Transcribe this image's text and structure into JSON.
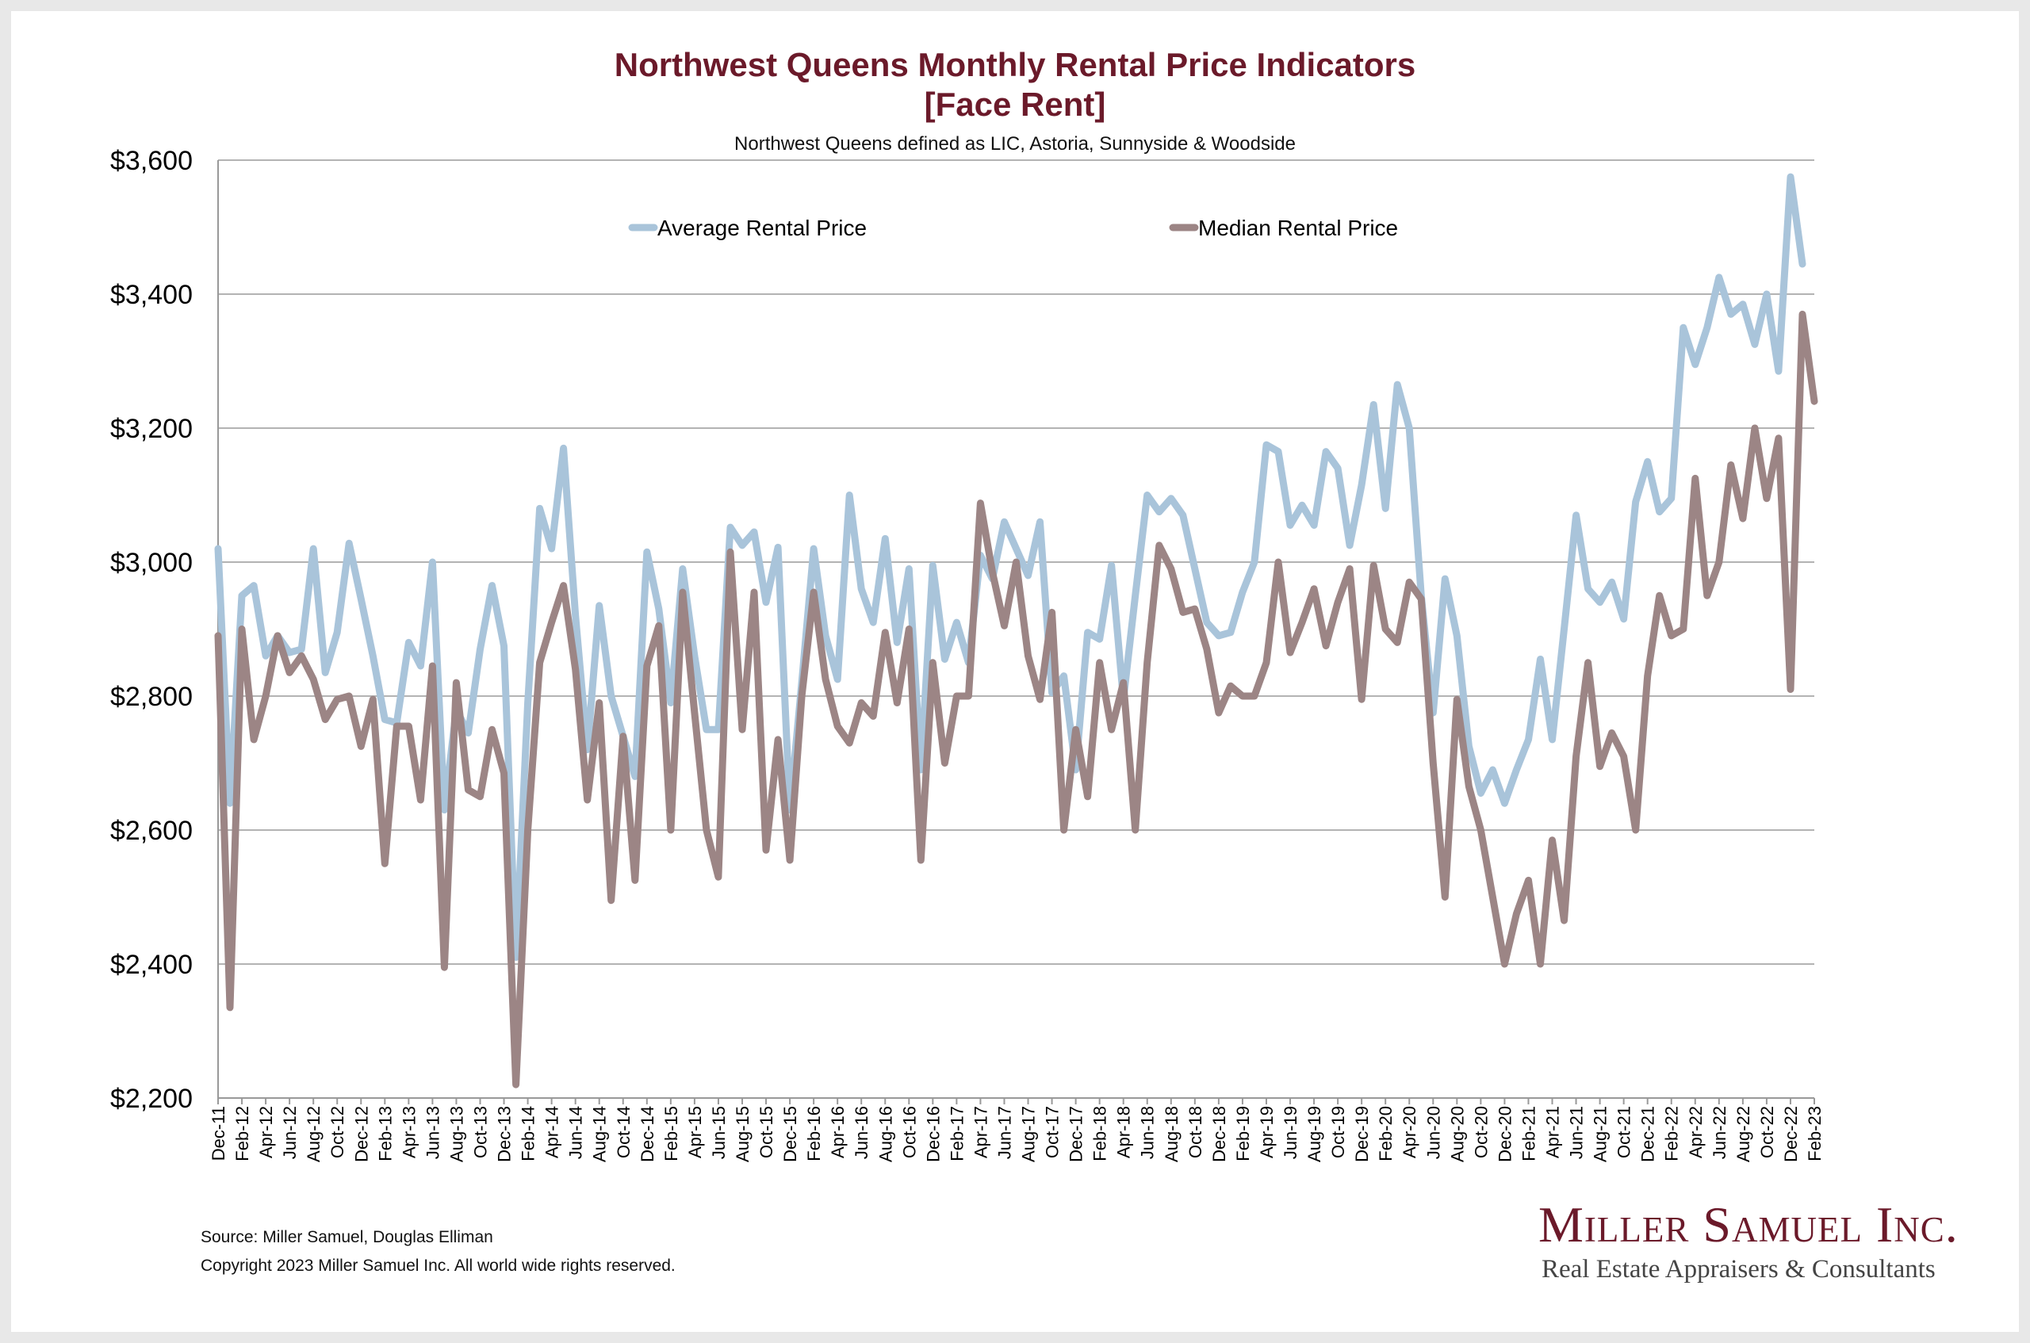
{
  "header": {
    "title_line1": "Northwest Queens Monthly Rental Price Indicators",
    "title_line2": "[Face Rent]",
    "subtitle": "Northwest Queens defined as LIC, Astoria, Sunnyside & Woodside"
  },
  "footer": {
    "source": "Source: Miller Samuel, Douglas Elliman",
    "copyright": "Copyright 2023 Miller Samuel Inc.  All world wide rights reserved."
  },
  "logo": {
    "name": "Miller Samuel Inc.",
    "tagline": "Real Estate Appraisers & Consultants"
  },
  "colors": {
    "title": "#6b1a2a",
    "average_series": "#a9c4da",
    "median_series": "#9c8585",
    "gridline": "#b3b3b3"
  },
  "chart_data": {
    "type": "line",
    "y_tick_labels": [
      "$2,200",
      "$2,400",
      "$2,600",
      "$2,800",
      "$3,000",
      "$3,200",
      "$3,400",
      "$3,600"
    ],
    "ylim": [
      2200,
      3600
    ],
    "x_tick_labels": [
      "Dec-11",
      "Feb-12",
      "Apr-12",
      "Jun-12",
      "Aug-12",
      "Oct-12",
      "Dec-12",
      "Feb-13",
      "Apr-13",
      "Jun-13",
      "Aug-13",
      "Oct-13",
      "Dec-13",
      "Feb-14",
      "Apr-14",
      "Jun-14",
      "Aug-14",
      "Oct-14",
      "Dec-14",
      "Feb-15",
      "Apr-15",
      "Jun-15",
      "Aug-15",
      "Oct-15",
      "Dec-15",
      "Feb-16",
      "Apr-16",
      "Jun-16",
      "Aug-16",
      "Oct-16",
      "Dec-16",
      "Feb-17",
      "Apr-17",
      "Jun-17",
      "Aug-17",
      "Oct-17",
      "Dec-17",
      "Feb-18",
      "Apr-18",
      "Jun-18",
      "Aug-18",
      "Oct-18",
      "Dec-18",
      "Feb-19",
      "Apr-19",
      "Jun-19",
      "Aug-19",
      "Oct-19",
      "Dec-19",
      "Feb-20",
      "Apr-20",
      "Jun-20",
      "Aug-20",
      "Oct-20",
      "Dec-20",
      "Feb-21",
      "Apr-21",
      "Jun-21",
      "Aug-21",
      "Oct-21",
      "Dec-21",
      "Feb-22",
      "Apr-22",
      "Jun-22",
      "Aug-22",
      "Oct-22",
      "Dec-22",
      "Feb-23"
    ],
    "months": [
      "Dec-11",
      "Jan-12",
      "Feb-12",
      "Mar-12",
      "Apr-12",
      "May-12",
      "Jun-12",
      "Jul-12",
      "Aug-12",
      "Sep-12",
      "Oct-12",
      "Nov-12",
      "Dec-12",
      "Jan-13",
      "Feb-13",
      "Mar-13",
      "Apr-13",
      "May-13",
      "Jun-13",
      "Jul-13",
      "Aug-13",
      "Sep-13",
      "Oct-13",
      "Nov-13",
      "Dec-13",
      "Jan-14",
      "Feb-14",
      "Mar-14",
      "Apr-14",
      "May-14",
      "Jun-14",
      "Jul-14",
      "Aug-14",
      "Sep-14",
      "Oct-14",
      "Nov-14",
      "Dec-14",
      "Jan-15",
      "Feb-15",
      "Mar-15",
      "Apr-15",
      "May-15",
      "Jun-15",
      "Jul-15",
      "Aug-15",
      "Sep-15",
      "Oct-15",
      "Nov-15",
      "Dec-15",
      "Jan-16",
      "Feb-16",
      "Mar-16",
      "Apr-16",
      "May-16",
      "Jun-16",
      "Jul-16",
      "Aug-16",
      "Sep-16",
      "Oct-16",
      "Nov-16",
      "Dec-16",
      "Jan-17",
      "Feb-17",
      "Mar-17",
      "Apr-17",
      "May-17",
      "Jun-17",
      "Jul-17",
      "Aug-17",
      "Sep-17",
      "Oct-17",
      "Nov-17",
      "Dec-17",
      "Jan-18",
      "Feb-18",
      "Mar-18",
      "Apr-18",
      "May-18",
      "Jun-18",
      "Jul-18",
      "Aug-18",
      "Sep-18",
      "Oct-18",
      "Nov-18",
      "Dec-18",
      "Jan-19",
      "Feb-19",
      "Mar-19",
      "Apr-19",
      "May-19",
      "Jun-19",
      "Jul-19",
      "Aug-19",
      "Sep-19",
      "Oct-19",
      "Nov-19",
      "Dec-19",
      "Jan-20",
      "Feb-20",
      "Mar-20",
      "Apr-20",
      "May-20",
      "Jun-20",
      "Jul-20",
      "Aug-20",
      "Sep-20",
      "Oct-20",
      "Nov-20",
      "Dec-20",
      "Jan-21",
      "Feb-21",
      "Mar-21",
      "Apr-21",
      "May-21",
      "Jun-21",
      "Jul-21",
      "Aug-21",
      "Sep-21",
      "Oct-21",
      "Nov-21",
      "Dec-21",
      "Jan-22",
      "Feb-22",
      "Mar-22",
      "Apr-22",
      "May-22",
      "Jun-22",
      "Jul-22",
      "Aug-22",
      "Sep-22",
      "Oct-22",
      "Nov-22",
      "Dec-22",
      "Jan-23",
      "Feb-23"
    ],
    "series": [
      {
        "name": "Average Rental Price",
        "color": "#a9c4da",
        "values": [
          3020,
          2640,
          2950,
          2965,
          2860,
          2890,
          2865,
          2870,
          3020,
          2835,
          2895,
          3028,
          2945,
          2860,
          2765,
          2760,
          2880,
          2845,
          3000,
          2630,
          2780,
          2745,
          2870,
          2965,
          2875,
          2410,
          2790,
          3080,
          3020,
          3170,
          2920,
          2720,
          2935,
          2800,
          2740,
          2680,
          3015,
          2930,
          2790,
          2990,
          2860,
          2750,
          2750,
          3052,
          3025,
          3045,
          2940,
          3022,
          2630,
          2820,
          3020,
          2890,
          2825,
          3100,
          2960,
          2910,
          3035,
          2880,
          2990,
          2690,
          2995,
          2855,
          2910,
          2850,
          3010,
          2975,
          3060,
          3020,
          2980,
          3060,
          2805,
          2830,
          2690,
          2895,
          2885,
          2995,
          2795,
          2950,
          3100,
          3075,
          3095,
          3070,
          2990,
          2910,
          2890,
          2895,
          2955,
          3000,
          3175,
          3165,
          3055,
          3085,
          3055,
          3165,
          3140,
          3025,
          3115,
          3235,
          3080,
          3265,
          3200,
          2950,
          2775,
          2975,
          2890,
          2725,
          2655,
          2690,
          2640,
          2690,
          2735,
          2855,
          2735,
          2900,
          3070,
          2960,
          2940,
          2970,
          2915,
          3090,
          3150,
          3075,
          3095,
          3350,
          3295,
          3350,
          3425,
          3370,
          3385,
          3325,
          3400,
          3285,
          3575,
          3445
        ]
      },
      {
        "name": "Median Rental Price",
        "color": "#9c8585",
        "values": [
          2890,
          2335,
          2900,
          2735,
          2800,
          2890,
          2835,
          2860,
          2825,
          2765,
          2795,
          2800,
          2725,
          2795,
          2550,
          2755,
          2755,
          2645,
          2845,
          2395,
          2820,
          2660,
          2650,
          2750,
          2685,
          2220,
          2600,
          2850,
          2910,
          2965,
          2840,
          2645,
          2790,
          2495,
          2740,
          2525,
          2845,
          2905,
          2600,
          2955,
          2775,
          2600,
          2530,
          3015,
          2750,
          2955,
          2570,
          2735,
          2555,
          2800,
          2955,
          2825,
          2755,
          2730,
          2790,
          2770,
          2895,
          2790,
          2900,
          2555,
          2850,
          2700,
          2800,
          2800,
          3088,
          2985,
          2905,
          3000,
          2860,
          2795,
          2925,
          2600,
          2750,
          2650,
          2850,
          2750,
          2820,
          2600,
          2850,
          3025,
          2990,
          2925,
          2930,
          2870,
          2775,
          2815,
          2800,
          2800,
          2850,
          3000,
          2865,
          2910,
          2960,
          2875,
          2940,
          2990,
          2795,
          2995,
          2900,
          2880,
          2970,
          2945,
          2700,
          2500,
          2795,
          2665,
          2600,
          2500,
          2400,
          2475,
          2525,
          2400,
          2585,
          2465,
          2710,
          2850,
          2695,
          2745,
          2710,
          2600,
          2830,
          2950,
          2890,
          2900,
          3125,
          2950,
          3000,
          3145,
          3065,
          3200,
          3095,
          3185,
          2810,
          3370,
          3240
        ]
      }
    ]
  }
}
